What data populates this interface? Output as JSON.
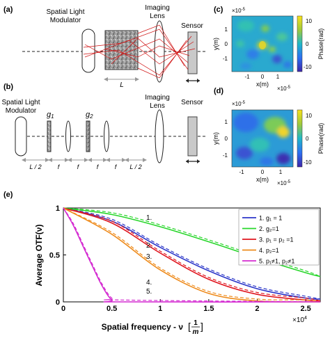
{
  "panels": {
    "a": {
      "label": "(a)",
      "slm_label": [
        "Spatial Light",
        "Modulator"
      ],
      "lens_label": [
        "Imaging",
        "Lens"
      ],
      "sensor_label": "Sensor",
      "length_label": "L"
    },
    "b": {
      "label": "(b)",
      "slm_label": [
        "Spatial Light",
        "Modulator"
      ],
      "lens_label": [
        "Imaging",
        "Lens"
      ],
      "sensor_label": "Sensor",
      "g1": "g",
      "g1_sub": "1",
      "g2": "g",
      "g2_sub": "2",
      "spacing_labels": [
        "L / 2",
        "f",
        "f",
        "f",
        "f",
        "L / 2"
      ]
    },
    "c": {
      "label": "(c)",
      "exponent_top": "×10",
      "exponent_top_power": "-5",
      "xlabel": "x(m)",
      "ylabel": "y(m)",
      "xexp": "×10",
      "xexp_power": "-5",
      "xticks": [
        "-1",
        "0",
        "1"
      ],
      "yticks": [
        "1",
        "0",
        "-1"
      ],
      "colorbar_label": "Phase(rad)",
      "colorbar_ticks": [
        "10",
        "0",
        "-10"
      ]
    },
    "d": {
      "label": "(d)",
      "exponent_top": "×10",
      "exponent_top_power": "-5",
      "xlabel": "x(m)",
      "ylabel": "y(m)",
      "xexp": "×10",
      "xexp_power": "-5",
      "xticks": [
        "-1",
        "0",
        "1"
      ],
      "yticks": [
        "1",
        "0",
        "-1"
      ],
      "colorbar_label": "Phase(rad)",
      "colorbar_ticks": [
        "10",
        "0",
        "-10"
      ]
    },
    "e": {
      "label": "(e)",
      "curve_labels": [
        "1.",
        "2.",
        "3.",
        "4.",
        "5."
      ]
    }
  },
  "chart_data": {
    "type": "line",
    "ylabel": "Average OTF(ν)",
    "xlabel": "Spatial frequency - ν",
    "xlabel_unit_num": "1",
    "xlabel_unit_den": "m",
    "x_exponent": "×10",
    "x_exponent_power": "4",
    "xlim": [
      0,
      26500
    ],
    "ylim": [
      0,
      1
    ],
    "xticks": [
      0,
      5000,
      10000,
      15000,
      20000,
      25000
    ],
    "xtick_labels": [
      "0",
      "0.5",
      "1",
      "1.5",
      "2",
      "2.5"
    ],
    "yticks": [
      0,
      0.5,
      1
    ],
    "ytick_labels": [
      "0",
      "0.5",
      "1"
    ],
    "legend_position": "top-right",
    "series": [
      {
        "name": "1. g₁ = 1",
        "color": "#2b36c9",
        "x": [
          0,
          5000,
          10000,
          15000,
          20000,
          25000,
          26500
        ],
        "y": [
          1.0,
          0.86,
          0.58,
          0.33,
          0.14,
          0.04,
          0.03
        ]
      },
      {
        "name": "2. g₂=1",
        "color": "#27d62a",
        "x": [
          0,
          5000,
          10000,
          15000,
          20000,
          25000,
          26500
        ],
        "y": [
          1.0,
          0.93,
          0.8,
          0.64,
          0.47,
          0.31,
          0.27
        ]
      },
      {
        "name": "3. p₁ = p₂ =1",
        "color": "#e0141d",
        "x": [
          0,
          5000,
          10000,
          15000,
          20000,
          25000,
          26500
        ],
        "y": [
          1.0,
          0.84,
          0.52,
          0.24,
          0.08,
          0.02,
          0.01
        ]
      },
      {
        "name": "4. p₂=1",
        "color": "#ee8a1a",
        "x": [
          0,
          5000,
          10000,
          15000,
          20000,
          25000,
          26500
        ],
        "y": [
          1.0,
          0.72,
          0.34,
          0.09,
          0.01,
          0.0,
          0.0
        ]
      },
      {
        "name": "5. p₁≠1, p₂≠1",
        "color": "#d42bd1",
        "x": [
          0,
          1000,
          2000,
          3000,
          4000,
          5000,
          6000,
          26500
        ],
        "y": [
          1.0,
          0.82,
          0.6,
          0.38,
          0.17,
          0.02,
          0.0,
          0.0
        ]
      }
    ]
  }
}
